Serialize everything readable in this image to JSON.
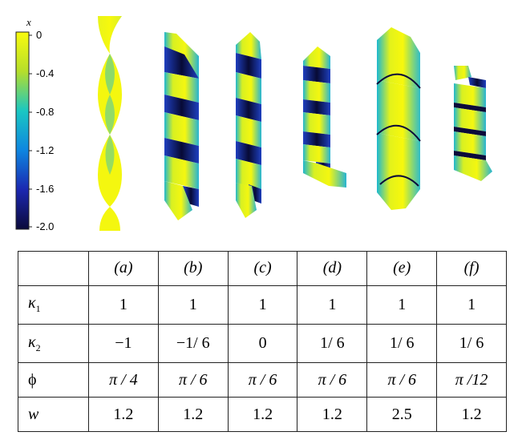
{
  "colorbar": {
    "title": "x",
    "ticks": [
      "0",
      "-0.4",
      "-0.8",
      "-1.2",
      "-1.6",
      "-2.0"
    ],
    "colormap": [
      "#f9fb0e",
      "#4cc16a",
      "#1ac7c2",
      "#0e7ee2",
      "#1b27b0",
      "#0b0a3a"
    ]
  },
  "table": {
    "columns": [
      "(a)",
      "(b)",
      "(c)",
      "(d)",
      "(e)",
      "(f)"
    ],
    "rows": [
      {
        "symbol": "κ",
        "sub": "1",
        "values": [
          "1",
          "1",
          "1",
          "1",
          "1",
          "1"
        ]
      },
      {
        "symbol": "κ",
        "sub": "2",
        "values": [
          "−1",
          "−1/ 6",
          "0",
          "1/ 6",
          "1/ 6",
          "1/ 6"
        ]
      },
      {
        "symbol": "ϕ",
        "sub": "",
        "values": [
          "π / 4",
          "π / 6",
          "π / 6",
          "π / 6",
          "π / 6",
          "π /12"
        ]
      },
      {
        "symbol": "w",
        "sub": "",
        "values": [
          "1.2",
          "1.2",
          "1.2",
          "1.2",
          "2.5",
          "1.2"
        ]
      }
    ]
  }
}
